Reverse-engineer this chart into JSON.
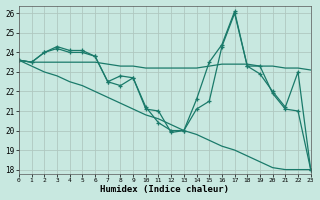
{
  "title": "",
  "xlabel": "Humidex (Indice chaleur)",
  "ylabel": "",
  "bg_color": "#c8e8e0",
  "grid_color": "#b0c8c0",
  "line_color": "#1a7a6a",
  "xlim": [
    0,
    23
  ],
  "ylim": [
    17.8,
    26.4
  ],
  "yticks": [
    18,
    19,
    20,
    21,
    22,
    23,
    24,
    25,
    26
  ],
  "xticks": [
    0,
    1,
    2,
    3,
    4,
    5,
    6,
    7,
    8,
    9,
    10,
    11,
    12,
    13,
    14,
    15,
    16,
    17,
    18,
    19,
    20,
    21,
    22,
    23
  ],
  "line1_x": [
    0,
    1,
    2,
    3,
    4,
    5,
    6,
    7,
    8,
    9,
    10,
    11,
    12,
    13,
    14,
    15,
    16,
    17,
    18,
    19,
    20,
    21,
    22,
    23
  ],
  "line1_y": [
    23.6,
    23.5,
    24.0,
    24.2,
    24.0,
    24.0,
    23.8,
    22.5,
    22.3,
    22.7,
    21.1,
    21.0,
    19.9,
    20.0,
    21.1,
    21.5,
    24.3,
    26.0,
    23.3,
    23.3,
    21.9,
    21.1,
    21.0,
    18.0
  ],
  "line2_x": [
    0,
    1,
    2,
    3,
    4,
    5,
    6,
    7,
    8,
    9,
    10,
    11,
    12,
    13,
    14,
    15,
    16,
    17,
    18,
    19,
    20,
    21,
    22,
    23
  ],
  "line2_y": [
    23.6,
    23.5,
    24.0,
    24.3,
    24.1,
    24.1,
    23.8,
    22.5,
    22.8,
    22.7,
    21.2,
    20.4,
    20.0,
    20.0,
    21.6,
    23.5,
    24.4,
    26.1,
    23.3,
    22.9,
    22.0,
    21.2,
    23.0,
    18.0
  ],
  "line3_x": [
    0,
    1,
    2,
    3,
    4,
    5,
    6,
    7,
    8,
    9,
    10,
    11,
    12,
    13,
    14,
    15,
    16,
    17,
    18,
    19,
    20,
    21,
    22,
    23
  ],
  "line3_y": [
    23.6,
    23.5,
    23.5,
    23.5,
    23.5,
    23.5,
    23.5,
    23.4,
    23.3,
    23.3,
    23.2,
    23.2,
    23.2,
    23.2,
    23.2,
    23.3,
    23.4,
    23.4,
    23.4,
    23.3,
    23.3,
    23.2,
    23.2,
    23.1
  ],
  "line4_x": [
    0,
    1,
    2,
    3,
    4,
    5,
    6,
    7,
    8,
    9,
    10,
    11,
    12,
    13,
    14,
    15,
    16,
    17,
    18,
    19,
    20,
    21,
    22,
    23
  ],
  "line4_y": [
    23.6,
    23.3,
    23.0,
    22.8,
    22.5,
    22.3,
    22.0,
    21.7,
    21.4,
    21.1,
    20.8,
    20.6,
    20.3,
    20.0,
    19.8,
    19.5,
    19.2,
    19.0,
    18.7,
    18.4,
    18.1,
    18.0,
    18.0,
    18.0
  ]
}
